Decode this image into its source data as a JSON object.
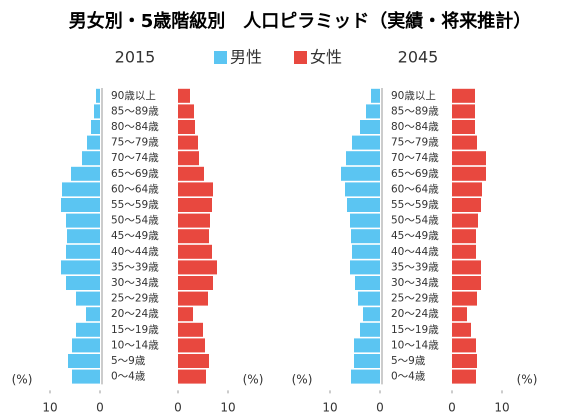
{
  "chart_data": {
    "type": "pyramid",
    "title": "男女別・5歳階級別　人口ピラミッド（実績・将来推計）",
    "categories": [
      "90歳以上",
      "85～89歳",
      "80～84歳",
      "75～79歳",
      "70～74歳",
      "65～69歳",
      "60～64歳",
      "55～59歳",
      "50～54歳",
      "45～49歳",
      "40～44歳",
      "35～39歳",
      "30～34歳",
      "25～29歳",
      "20～24歳",
      "15～19歳",
      "10～14歳",
      "5～9歳",
      "0～4歳"
    ],
    "legend": [
      {
        "name": "男性",
        "color": "#5bc5f2"
      },
      {
        "name": "女性",
        "color": "#e8483f"
      }
    ],
    "xlim": [
      0,
      12
    ],
    "xticks": [
      0,
      10
    ],
    "x_label": "(%)",
    "panels": [
      {
        "title": "2015",
        "series": [
          {
            "values": [
              0.8,
              1.2,
              1.8,
              2.6,
              3.6,
              5.8,
              7.6,
              7.8,
              6.8,
              6.6,
              6.8,
              7.8,
              6.8,
              4.8,
              2.8,
              4.8,
              5.6,
              6.4,
              5.6
            ]
          },
          {
            "values": [
              2.4,
              3.2,
              3.4,
              4.0,
              4.2,
              5.2,
              7.0,
              6.8,
              6.4,
              6.2,
              6.8,
              7.8,
              7.0,
              6.0,
              3.0,
              5.0,
              5.4,
              6.2,
              5.6
            ]
          }
        ]
      },
      {
        "title": "2045",
        "series": [
          {
            "values": [
              1.8,
              2.8,
              4.0,
              5.6,
              6.8,
              7.8,
              7.0,
              6.6,
              6.0,
              5.8,
              5.6,
              6.0,
              5.0,
              4.4,
              3.4,
              4.0,
              5.2,
              5.2,
              5.8
            ]
          },
          {
            "values": [
              4.6,
              4.6,
              4.6,
              5.0,
              6.8,
              6.8,
              6.0,
              5.8,
              5.2,
              4.8,
              4.8,
              5.8,
              5.8,
              5.0,
              3.0,
              3.8,
              4.8,
              5.0,
              4.8
            ]
          }
        ]
      }
    ]
  }
}
